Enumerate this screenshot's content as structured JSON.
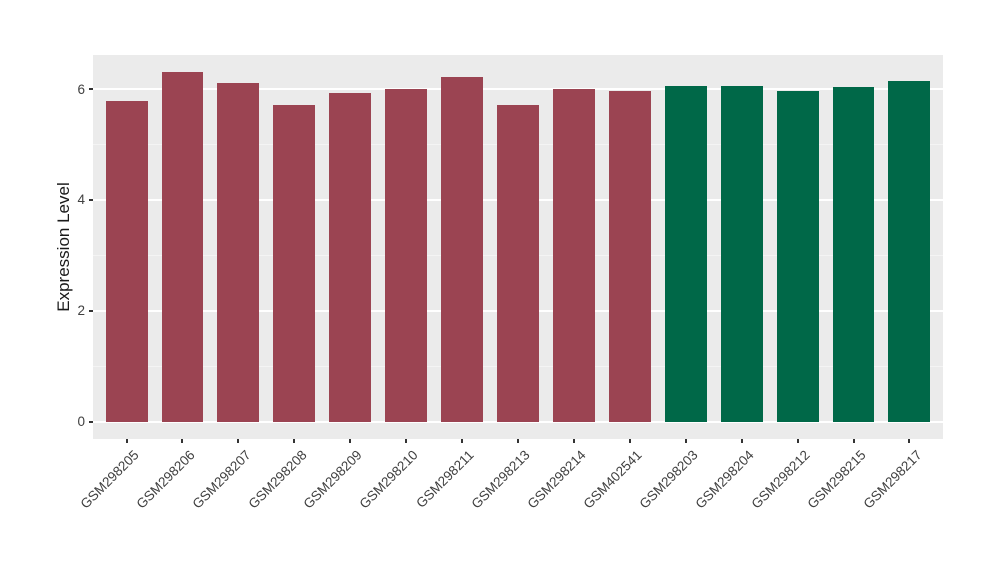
{
  "chart_data": {
    "type": "bar",
    "title": "",
    "ylabel": "Expression Level",
    "xlabel": "",
    "categories": [
      "GSM298205",
      "GSM298206",
      "GSM298207",
      "GSM298208",
      "GSM298209",
      "GSM298210",
      "GSM298211",
      "GSM298213",
      "GSM298214",
      "GSM402541",
      "GSM298203",
      "GSM298204",
      "GSM298212",
      "GSM298215",
      "GSM298217"
    ],
    "values": [
      5.79,
      6.3,
      6.11,
      5.72,
      5.93,
      6.0,
      6.22,
      5.72,
      6.0,
      5.97,
      6.05,
      6.05,
      5.97,
      6.03,
      6.14
    ],
    "bar_color_groups": [
      1,
      1,
      1,
      1,
      1,
      1,
      1,
      1,
      1,
      1,
      2,
      2,
      2,
      2,
      2
    ],
    "group_colors": {
      "1": "#9B4452",
      "2": "#006848"
    },
    "yticks": [
      0,
      2,
      4,
      6
    ],
    "ytick_labels": [
      "0",
      "2",
      "4",
      "6"
    ],
    "minor_ticks": [
      1,
      3,
      5
    ],
    "ylim": [
      -0.315,
      6.615
    ],
    "grid": true,
    "legend": "none",
    "theme": {
      "panel_bg": "#EBEBEB",
      "grid_major": "#FFFFFF",
      "grid_minor": "#F4F4F4",
      "tick_mark": "#333333",
      "tick_label": "#404040",
      "axis_title": "#1A1A1A"
    }
  }
}
